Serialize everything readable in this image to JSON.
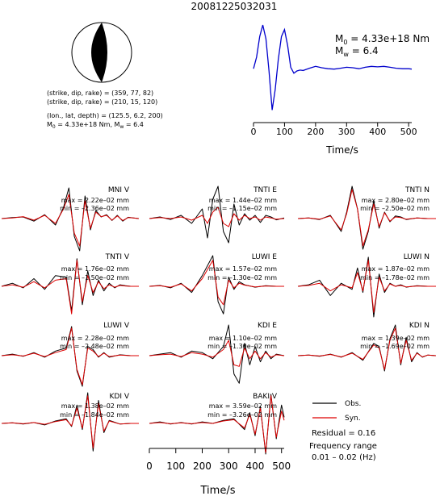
{
  "header": {
    "event_id": "20081225032031"
  },
  "mechanism": {
    "plane1": "(strike, dip, rake) = (359, 77, 82)",
    "plane2": "(strike, dip, rake) = (210, 15, 120)",
    "location": "(lon., lat, depth) = (125.5, 6.2, 200)",
    "moment_prefix": "M",
    "moment_sub": "0",
    "moment_value": " = 4.33e+18 Nm, M",
    "mw_sub": "w",
    "mw_value": " = 6.4"
  },
  "stf": {
    "m0_label": "M",
    "m0_sub": "0",
    "m0_text": " = 4.33e+18 Nm",
    "mw_label": "M",
    "mw_sub": "w",
    "mw_text": " = 6.4",
    "xlabel": "Time/s",
    "color": "#0000cc"
  },
  "waveform_axis": {
    "xlabel": "Time/s"
  },
  "legend": {
    "obs": "Obs.",
    "syn": "Syn.",
    "obs_color": "#000000",
    "syn_color": "#dd0000",
    "residual": "Residual = 0.16",
    "freq_title": "Frequency range",
    "freq_value": "0.01 – 0.02 (Hz)"
  },
  "chart_data": [
    {
      "type": "line",
      "id": "source-time-function",
      "xlabel": "Time/s",
      "xlim": [
        0,
        510
      ],
      "xticks": [
        0,
        100,
        200,
        300,
        400,
        500
      ],
      "series": [
        {
          "x": [
            0,
            10,
            20,
            30,
            40,
            50,
            60,
            70,
            80,
            90,
            100,
            110,
            120,
            130,
            140,
            150,
            160,
            180,
            200,
            220,
            240,
            260,
            280,
            300,
            320,
            340,
            360,
            380,
            400,
            420,
            440,
            460,
            480,
            500,
            510
          ],
          "y": [
            0.05,
            0.3,
            0.75,
            1.0,
            0.7,
            0.0,
            -0.85,
            -0.4,
            0.25,
            0.75,
            0.9,
            0.55,
            0.08,
            -0.05,
            0.0,
            0.02,
            0.01,
            0.06,
            0.1,
            0.07,
            0.05,
            0.04,
            0.06,
            0.08,
            0.07,
            0.05,
            0.08,
            0.1,
            0.09,
            0.1,
            0.08,
            0.06,
            0.05,
            0.05,
            0.04
          ]
        }
      ]
    },
    {
      "type": "line",
      "station": "MNI V",
      "max": "max = 2.22e–02 mm",
      "min": "min = –2.36e–02 mm",
      "xlim": [
        0,
        510
      ],
      "x": [
        0,
        40,
        80,
        120,
        160,
        200,
        230,
        250,
        270,
        290,
        310,
        330,
        350,
        370,
        390,
        410,
        430,
        450,
        470,
        490,
        510
      ],
      "series": [
        {
          "name": "Obs.",
          "values": [
            0.0,
            0.03,
            0.05,
            -0.08,
            0.12,
            -0.2,
            0.35,
            0.95,
            -0.55,
            -1.0,
            0.7,
            -0.35,
            0.25,
            0.05,
            0.12,
            -0.06,
            0.1,
            -0.08,
            0.04,
            0.02,
            0.0
          ]
        },
        {
          "name": "Syn.",
          "values": [
            0.0,
            0.02,
            0.06,
            -0.05,
            0.1,
            -0.15,
            0.3,
            0.75,
            -0.45,
            -0.85,
            0.55,
            -0.3,
            0.2,
            0.06,
            0.1,
            -0.05,
            0.08,
            -0.06,
            0.03,
            0.02,
            0.0
          ]
        }
      ]
    },
    {
      "type": "line",
      "station": "TNTI E",
      "max": "max = 1.44e–02 mm",
      "min": "min = –1.15e–02 mm",
      "xlim": [
        0,
        510
      ],
      "x": [
        0,
        40,
        80,
        120,
        160,
        200,
        220,
        240,
        260,
        280,
        300,
        320,
        340,
        360,
        380,
        400,
        420,
        440,
        460,
        480,
        510
      ],
      "series": [
        {
          "name": "Obs.",
          "values": [
            0.0,
            0.05,
            -0.03,
            0.1,
            -0.15,
            0.3,
            -0.6,
            0.6,
            1.0,
            -0.4,
            -0.75,
            0.45,
            -0.2,
            0.15,
            -0.05,
            0.1,
            -0.12,
            0.1,
            0.05,
            -0.04,
            0.02
          ]
        },
        {
          "name": "Syn.",
          "values": [
            0.0,
            0.03,
            0.0,
            0.05,
            -0.05,
            0.1,
            -0.15,
            0.2,
            0.35,
            -0.15,
            -0.25,
            0.15,
            -0.05,
            0.1,
            0.0,
            0.05,
            -0.05,
            0.05,
            0.02,
            -0.02,
            0.0
          ]
        }
      ]
    },
    {
      "type": "line",
      "station": "TNTI N",
      "max": "max = 2.80e–02 mm",
      "min": "min = –2.50e–02 mm",
      "xlim": [
        0,
        510
      ],
      "x": [
        0,
        40,
        80,
        120,
        160,
        180,
        200,
        220,
        240,
        260,
        280,
        300,
        320,
        340,
        360,
        380,
        400,
        440,
        480,
        510
      ],
      "series": [
        {
          "name": "Obs.",
          "values": [
            0.0,
            0.02,
            -0.03,
            0.1,
            -0.4,
            0.2,
            1.0,
            0.3,
            -0.95,
            -0.4,
            0.55,
            -0.3,
            0.2,
            -0.1,
            0.08,
            0.05,
            -0.03,
            0.02,
            0.0,
            0.0
          ]
        },
        {
          "name": "Syn.",
          "values": [
            0.0,
            0.02,
            -0.02,
            0.08,
            -0.35,
            0.15,
            0.9,
            0.3,
            -0.85,
            -0.35,
            0.45,
            -0.25,
            0.18,
            -0.08,
            0.05,
            0.03,
            -0.02,
            0.02,
            0.0,
            0.0
          ]
        }
      ]
    },
    {
      "type": "line",
      "station": "TNTI V",
      "max": "max = 1.76e–02 mm",
      "min": "min = –1.50e–02 mm",
      "xlim": [
        0,
        510
      ],
      "x": [
        0,
        40,
        80,
        120,
        160,
        200,
        240,
        260,
        280,
        300,
        320,
        340,
        360,
        380,
        400,
        420,
        440,
        460,
        480,
        510
      ],
      "series": [
        {
          "name": "Obs.",
          "values": [
            0.0,
            0.1,
            -0.05,
            0.25,
            -0.1,
            0.35,
            0.3,
            -0.8,
            0.9,
            -0.6,
            0.5,
            -0.3,
            0.2,
            -0.15,
            0.1,
            -0.05,
            0.05,
            0.02,
            0.0,
            0.0
          ]
        },
        {
          "name": "Syn.",
          "values": [
            0.0,
            0.05,
            -0.03,
            0.15,
            -0.05,
            0.2,
            0.25,
            -0.9,
            0.85,
            -0.5,
            0.35,
            -0.2,
            0.15,
            -0.08,
            0.05,
            -0.03,
            0.03,
            0.01,
            0.0,
            0.0
          ]
        }
      ]
    },
    {
      "type": "line",
      "station": "LUWI E",
      "max": "max = 1.57e–02 mm",
      "min": "min = –1.30e–02 mm",
      "xlim": [
        0,
        510
      ],
      "x": [
        0,
        40,
        80,
        120,
        160,
        200,
        240,
        260,
        280,
        300,
        320,
        340,
        360,
        400,
        440,
        480,
        510
      ],
      "series": [
        {
          "name": "Obs.",
          "values": [
            0.0,
            0.03,
            -0.05,
            0.1,
            -0.2,
            0.35,
            1.0,
            -0.5,
            -0.9,
            0.3,
            -0.1,
            0.15,
            0.05,
            -0.03,
            0.02,
            0.0,
            0.0
          ]
        },
        {
          "name": "Syn.",
          "values": [
            0.0,
            0.02,
            -0.03,
            0.08,
            -0.15,
            0.25,
            0.85,
            -0.35,
            -0.6,
            0.2,
            -0.05,
            0.1,
            0.04,
            -0.02,
            0.01,
            0.0,
            0.0
          ]
        }
      ]
    },
    {
      "type": "line",
      "station": "LUWI N",
      "max": "max = 1.87e–02 mm",
      "min": "min = –1.78e–02 mm",
      "xlim": [
        0,
        510
      ],
      "x": [
        0,
        40,
        80,
        120,
        160,
        200,
        220,
        240,
        260,
        280,
        300,
        320,
        340,
        360,
        380,
        400,
        440,
        480,
        510
      ],
      "series": [
        {
          "name": "Obs.",
          "values": [
            0.0,
            0.05,
            0.2,
            -0.3,
            0.1,
            -0.1,
            0.6,
            -0.2,
            0.95,
            -1.0,
            0.4,
            -0.2,
            0.1,
            0.0,
            0.05,
            -0.03,
            0.02,
            0.0,
            0.0
          ]
        },
        {
          "name": "Syn.",
          "values": [
            0.0,
            0.03,
            0.1,
            -0.15,
            0.05,
            -0.05,
            0.45,
            -0.15,
            0.85,
            -0.85,
            0.3,
            -0.15,
            0.08,
            0.0,
            0.03,
            -0.02,
            0.01,
            0.0,
            0.0
          ]
        }
      ]
    },
    {
      "type": "line",
      "station": "LUWI V",
      "max": "max = 2.28e–02 mm",
      "min": "min = –2.48e–02 mm",
      "xlim": [
        0,
        510
      ],
      "x": [
        0,
        40,
        80,
        120,
        160,
        200,
        240,
        260,
        280,
        300,
        320,
        340,
        360,
        380,
        400,
        440,
        480,
        510
      ],
      "series": [
        {
          "name": "Obs.",
          "values": [
            0.0,
            0.05,
            -0.02,
            0.1,
            -0.05,
            0.15,
            0.25,
            0.95,
            -0.5,
            -1.0,
            0.3,
            0.2,
            -0.05,
            0.1,
            -0.05,
            0.03,
            0.0,
            0.0
          ]
        },
        {
          "name": "Syn.",
          "values": [
            0.0,
            0.03,
            -0.01,
            0.08,
            -0.03,
            0.1,
            0.2,
            0.9,
            -0.45,
            -0.95,
            0.25,
            0.15,
            -0.03,
            0.08,
            -0.03,
            0.02,
            0.0,
            0.0
          ]
        }
      ]
    },
    {
      "type": "line",
      "station": "KDI E",
      "max": "max = 1.10e–02 mm",
      "min": "min = –1.30e–02 mm",
      "xlim": [
        0,
        510
      ],
      "x": [
        0,
        40,
        80,
        120,
        160,
        200,
        240,
        280,
        300,
        320,
        340,
        360,
        380,
        400,
        420,
        440,
        460,
        480,
        510
      ],
      "series": [
        {
          "name": "Obs.",
          "values": [
            0.0,
            0.05,
            0.1,
            -0.05,
            0.15,
            0.1,
            -0.1,
            0.3,
            1.0,
            -0.6,
            -0.9,
            0.4,
            -0.3,
            0.3,
            -0.2,
            0.15,
            -0.1,
            0.05,
            0.0
          ]
        },
        {
          "name": "Syn.",
          "values": [
            0.0,
            0.03,
            0.05,
            -0.03,
            0.1,
            0.05,
            -0.05,
            0.2,
            0.5,
            -0.3,
            -0.35,
            0.25,
            -0.1,
            0.15,
            -0.1,
            0.1,
            -0.05,
            0.03,
            0.0
          ]
        }
      ]
    },
    {
      "type": "line",
      "station": "KDI N",
      "max": "max = 1.39e–02 mm",
      "min": "min = –1.69e–02 mm",
      "xlim": [
        0,
        510
      ],
      "x": [
        0,
        40,
        80,
        120,
        160,
        200,
        240,
        280,
        300,
        320,
        340,
        360,
        380,
        400,
        420,
        440,
        460,
        480,
        510
      ],
      "series": [
        {
          "name": "Obs.",
          "values": [
            0.0,
            0.02,
            -0.02,
            0.05,
            -0.05,
            0.1,
            -0.15,
            0.4,
            0.3,
            -0.5,
            0.55,
            1.0,
            -0.3,
            0.6,
            -0.2,
            0.1,
            -0.05,
            0.02,
            0.0
          ]
        },
        {
          "name": "Syn.",
          "values": [
            0.0,
            0.02,
            -0.01,
            0.04,
            -0.04,
            0.08,
            -0.12,
            0.35,
            0.25,
            -0.45,
            0.5,
            0.9,
            -0.25,
            0.5,
            -0.15,
            0.08,
            -0.04,
            0.02,
            0.0
          ]
        }
      ]
    },
    {
      "type": "line",
      "station": "KDI V",
      "max": "max = 1.38e–02 mm",
      "min": "min = –1.84e–02 mm",
      "xlim": [
        0,
        510
      ],
      "x": [
        0,
        40,
        80,
        120,
        160,
        200,
        240,
        260,
        280,
        300,
        320,
        340,
        360,
        380,
        400,
        440,
        480,
        510
      ],
      "series": [
        {
          "name": "Obs.",
          "values": [
            0.0,
            0.02,
            -0.02,
            0.03,
            -0.05,
            0.08,
            0.15,
            -0.1,
            0.6,
            -0.2,
            1.0,
            -0.9,
            0.75,
            -0.3,
            0.1,
            -0.02,
            0.0,
            0.0
          ]
        },
        {
          "name": "Syn.",
          "values": [
            0.0,
            0.02,
            -0.01,
            0.03,
            -0.03,
            0.06,
            0.12,
            -0.08,
            0.5,
            -0.15,
            0.9,
            -0.8,
            0.65,
            -0.25,
            0.08,
            -0.02,
            0.0,
            0.0
          ]
        }
      ]
    },
    {
      "type": "line",
      "station": "BAKI V",
      "max": "max = 3.59e–02 mm",
      "min": "min = –3.26e–02 mm",
      "xlim": [
        0,
        510
      ],
      "x": [
        0,
        40,
        80,
        120,
        160,
        200,
        240,
        280,
        320,
        360,
        380,
        400,
        420,
        440,
        460,
        480,
        500,
        510
      ],
      "series": [
        {
          "name": "Obs.",
          "values": [
            0.0,
            0.05,
            -0.02,
            0.03,
            -0.02,
            0.05,
            0.0,
            0.1,
            0.15,
            -0.2,
            0.35,
            -0.4,
            0.55,
            -1.0,
            0.95,
            -0.5,
            0.6,
            0.2
          ]
        },
        {
          "name": "Syn.",
          "values": [
            0.0,
            0.03,
            -0.01,
            0.02,
            -0.01,
            0.03,
            0.0,
            0.08,
            0.12,
            -0.15,
            0.3,
            -0.35,
            0.5,
            -0.95,
            0.9,
            -0.45,
            0.4,
            0.1
          ]
        }
      ]
    }
  ]
}
